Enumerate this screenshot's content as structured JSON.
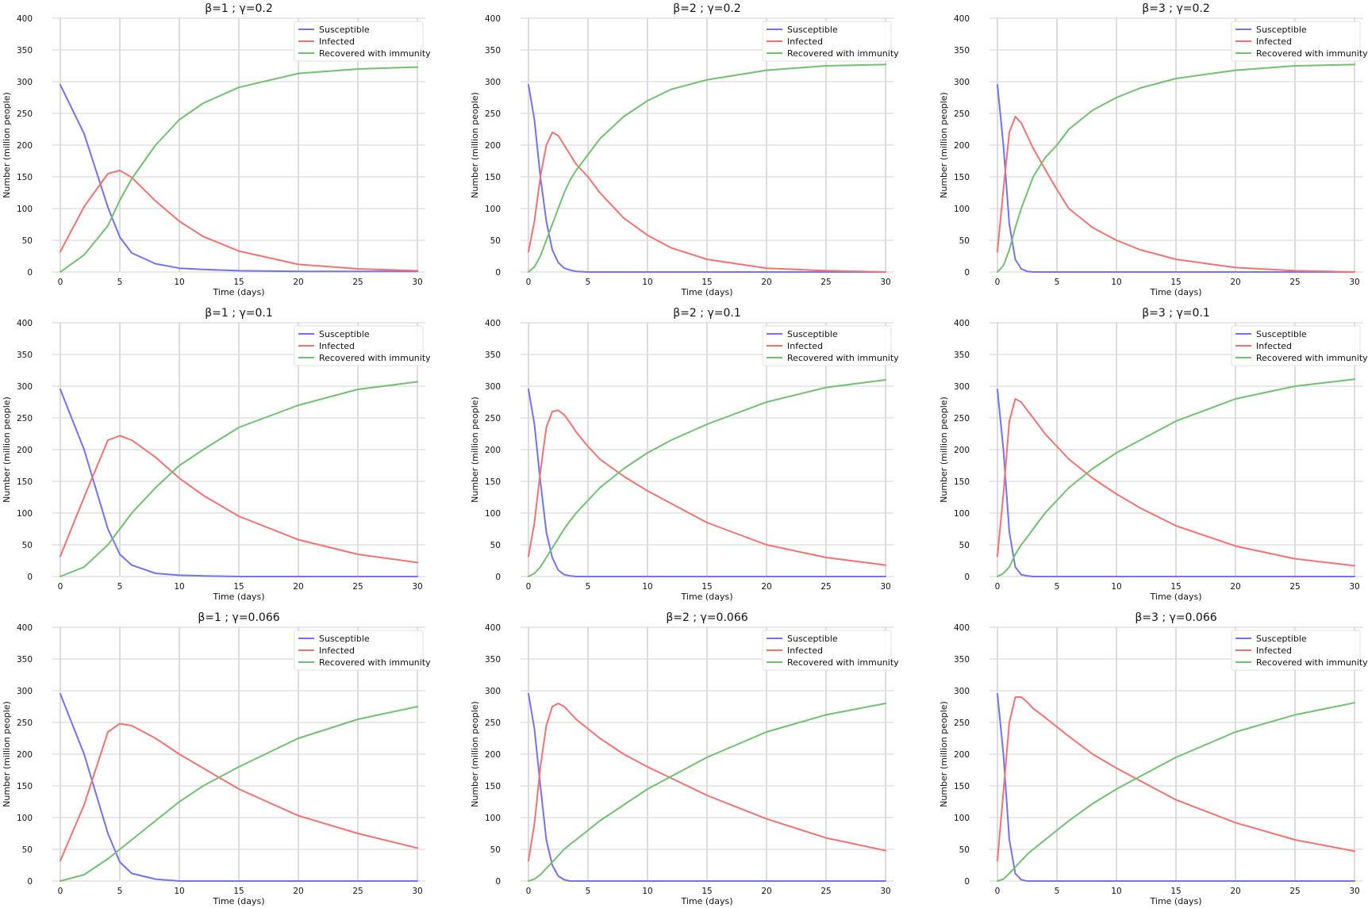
{
  "colors": {
    "susceptible": "#7272f2",
    "infected": "#f27272",
    "recovered": "#72bf72",
    "grid": "#d9d9d9",
    "background": "#ffffff"
  },
  "chart_data": [
    {
      "type": "line",
      "title": "β=1 ; γ=0.2",
      "xlabel": "Time (days)",
      "ylabel": "Number (million people)",
      "xlim": [
        0,
        30
      ],
      "ylim": [
        0,
        400
      ],
      "xticks": [
        0,
        5,
        10,
        15,
        20,
        25,
        30
      ],
      "yticks": [
        0,
        50,
        100,
        150,
        200,
        250,
        300,
        350,
        400
      ],
      "grid": true,
      "legend_position": "top-right",
      "x": [
        0,
        2,
        4,
        5,
        6,
        8,
        10,
        12,
        15,
        20,
        25,
        30
      ],
      "series": [
        {
          "name": "Susceptible",
          "color_key": "susceptible",
          "values": [
            295,
            218,
            102,
            55,
            30,
            13,
            6,
            4,
            2,
            1,
            1,
            1
          ]
        },
        {
          "name": "Infected",
          "color_key": "infected",
          "values": [
            32,
            103,
            155,
            160,
            149,
            112,
            80,
            56,
            33,
            12,
            5,
            2
          ]
        },
        {
          "name": "Recovered with immunity",
          "color_key": "recovered",
          "values": [
            0,
            27,
            73,
            113,
            147,
            200,
            240,
            266,
            291,
            313,
            320,
            323
          ]
        }
      ]
    },
    {
      "type": "line",
      "title": "β=2 ; γ=0.2",
      "xlabel": "Time (days)",
      "ylabel": "Number (million people)",
      "xlim": [
        0,
        30
      ],
      "ylim": [
        0,
        400
      ],
      "xticks": [
        0,
        5,
        10,
        15,
        20,
        25,
        30
      ],
      "yticks": [
        0,
        50,
        100,
        150,
        200,
        250,
        300,
        350,
        400
      ],
      "grid": true,
      "legend_position": "top-right",
      "x": [
        0,
        0.5,
        1,
        1.5,
        2,
        2.5,
        3,
        3.5,
        4,
        5,
        6,
        8,
        10,
        12,
        15,
        20,
        25,
        30
      ],
      "series": [
        {
          "name": "Susceptible",
          "color_key": "susceptible",
          "values": [
            295,
            240,
            150,
            80,
            35,
            15,
            6,
            3,
            1,
            0,
            0,
            0,
            0,
            0,
            0,
            0,
            0,
            0
          ]
        },
        {
          "name": "Infected",
          "color_key": "infected",
          "values": [
            32,
            80,
            150,
            200,
            220,
            215,
            200,
            185,
            170,
            150,
            125,
            85,
            58,
            38,
            20,
            6,
            2,
            0
          ]
        },
        {
          "name": "Recovered with immunity",
          "color_key": "recovered",
          "values": [
            0,
            8,
            25,
            50,
            75,
            100,
            125,
            145,
            160,
            185,
            210,
            245,
            270,
            288,
            303,
            318,
            325,
            327
          ]
        }
      ]
    },
    {
      "type": "line",
      "title": "β=3 ; γ=0.2",
      "xlabel": "Time (days)",
      "ylabel": "Number (million people)",
      "xlim": [
        0,
        30
      ],
      "ylim": [
        0,
        400
      ],
      "xticks": [
        0,
        5,
        10,
        15,
        20,
        25,
        30
      ],
      "yticks": [
        0,
        50,
        100,
        150,
        200,
        250,
        300,
        350,
        400
      ],
      "grid": true,
      "legend_position": "top-right",
      "x": [
        0,
        0.5,
        1,
        1.5,
        2,
        2.5,
        3,
        4,
        5,
        6,
        8,
        10,
        12,
        15,
        20,
        25,
        30
      ],
      "series": [
        {
          "name": "Susceptible",
          "color_key": "susceptible",
          "values": [
            295,
            200,
            75,
            20,
            5,
            1,
            0,
            0,
            0,
            0,
            0,
            0,
            0,
            0,
            0,
            0,
            0
          ]
        },
        {
          "name": "Infected",
          "color_key": "infected",
          "values": [
            32,
            130,
            220,
            245,
            235,
            215,
            195,
            162,
            130,
            100,
            70,
            50,
            35,
            20,
            7,
            2,
            0
          ]
        },
        {
          "name": "Recovered with immunity",
          "color_key": "recovered",
          "values": [
            0,
            10,
            35,
            70,
            100,
            125,
            150,
            180,
            200,
            225,
            255,
            275,
            290,
            305,
            318,
            325,
            327
          ]
        }
      ]
    },
    {
      "type": "line",
      "title": "β=1 ; γ=0.1",
      "xlabel": "Time (days)",
      "ylabel": "Number (million people)",
      "xlim": [
        0,
        30
      ],
      "ylim": [
        0,
        400
      ],
      "xticks": [
        0,
        5,
        10,
        15,
        20,
        25,
        30
      ],
      "yticks": [
        0,
        50,
        100,
        150,
        200,
        250,
        300,
        350,
        400
      ],
      "grid": true,
      "legend_position": "top-right",
      "x": [
        0,
        2,
        4,
        5,
        6,
        8,
        10,
        12,
        15,
        20,
        25,
        30
      ],
      "series": [
        {
          "name": "Susceptible",
          "color_key": "susceptible",
          "values": [
            295,
            200,
            75,
            35,
            18,
            5,
            2,
            1,
            0,
            0,
            0,
            0
          ]
        },
        {
          "name": "Infected",
          "color_key": "infected",
          "values": [
            32,
            125,
            215,
            222,
            215,
            188,
            155,
            128,
            95,
            58,
            35,
            22
          ]
        },
        {
          "name": "Recovered with immunity",
          "color_key": "recovered",
          "values": [
            0,
            15,
            50,
            75,
            100,
            140,
            175,
            200,
            235,
            270,
            295,
            307
          ]
        }
      ]
    },
    {
      "type": "line",
      "title": "β=2 ; γ=0.1",
      "xlabel": "Time (days)",
      "ylabel": "Number (million people)",
      "xlim": [
        0,
        30
      ],
      "ylim": [
        0,
        400
      ],
      "xticks": [
        0,
        5,
        10,
        15,
        20,
        25,
        30
      ],
      "yticks": [
        0,
        50,
        100,
        150,
        200,
        250,
        300,
        350,
        400
      ],
      "grid": true,
      "legend_position": "top-right",
      "x": [
        0,
        0.5,
        1,
        1.5,
        2,
        2.5,
        3,
        3.5,
        4,
        5,
        6,
        8,
        10,
        12,
        15,
        20,
        25,
        30
      ],
      "series": [
        {
          "name": "Susceptible",
          "color_key": "susceptible",
          "values": [
            295,
            240,
            150,
            70,
            30,
            10,
            3,
            1,
            0,
            0,
            0,
            0,
            0,
            0,
            0,
            0,
            0,
            0
          ]
        },
        {
          "name": "Infected",
          "color_key": "infected",
          "values": [
            32,
            85,
            165,
            235,
            260,
            262,
            255,
            242,
            228,
            205,
            185,
            158,
            135,
            115,
            85,
            50,
            30,
            18
          ]
        },
        {
          "name": "Recovered with immunity",
          "color_key": "recovered",
          "values": [
            0,
            5,
            15,
            30,
            45,
            60,
            75,
            88,
            100,
            120,
            140,
            170,
            195,
            215,
            240,
            275,
            298,
            310
          ]
        }
      ]
    },
    {
      "type": "line",
      "title": "β=3 ; γ=0.1",
      "xlabel": "Time (days)",
      "ylabel": "Number (million people)",
      "xlim": [
        0,
        30
      ],
      "ylim": [
        0,
        400
      ],
      "xticks": [
        0,
        5,
        10,
        15,
        20,
        25,
        30
      ],
      "yticks": [
        0,
        50,
        100,
        150,
        200,
        250,
        300,
        350,
        400
      ],
      "grid": true,
      "legend_position": "top-right",
      "x": [
        0,
        0.5,
        1,
        1.5,
        2,
        2.5,
        3,
        4,
        5,
        6,
        8,
        10,
        12,
        15,
        20,
        25,
        30
      ],
      "series": [
        {
          "name": "Susceptible",
          "color_key": "susceptible",
          "values": [
            295,
            200,
            70,
            15,
            3,
            1,
            0,
            0,
            0,
            0,
            0,
            0,
            0,
            0,
            0,
            0,
            0
          ]
        },
        {
          "name": "Infected",
          "color_key": "infected",
          "values": [
            32,
            130,
            245,
            280,
            275,
            262,
            250,
            225,
            205,
            185,
            155,
            130,
            108,
            80,
            48,
            28,
            17
          ]
        },
        {
          "name": "Recovered with immunity",
          "color_key": "recovered",
          "values": [
            0,
            5,
            15,
            35,
            50,
            62,
            75,
            100,
            120,
            140,
            170,
            195,
            215,
            245,
            280,
            300,
            311
          ]
        }
      ]
    },
    {
      "type": "line",
      "title": "β=1 ; γ=0.066",
      "xlabel": "Time (days)",
      "ylabel": "Number (million people)",
      "xlim": [
        0,
        30
      ],
      "ylim": [
        0,
        400
      ],
      "xticks": [
        0,
        5,
        10,
        15,
        20,
        25,
        30
      ],
      "yticks": [
        0,
        50,
        100,
        150,
        200,
        250,
        300,
        350,
        400
      ],
      "grid": true,
      "legend_position": "top-right",
      "x": [
        0,
        2,
        4,
        5,
        6,
        8,
        10,
        12,
        15,
        20,
        25,
        30
      ],
      "series": [
        {
          "name": "Susceptible",
          "color_key": "susceptible",
          "values": [
            295,
            200,
            75,
            30,
            12,
            3,
            0,
            0,
            0,
            0,
            0,
            0
          ]
        },
        {
          "name": "Infected",
          "color_key": "infected",
          "values": [
            32,
            120,
            235,
            248,
            245,
            225,
            200,
            178,
            145,
            103,
            75,
            52
          ]
        },
        {
          "name": "Recovered with immunity",
          "color_key": "recovered",
          "values": [
            0,
            10,
            35,
            50,
            65,
            95,
            125,
            150,
            180,
            225,
            255,
            275
          ]
        }
      ]
    },
    {
      "type": "line",
      "title": "β=2 ; γ=0.066",
      "xlabel": "Time (days)",
      "ylabel": "Number (million people)",
      "xlim": [
        0,
        30
      ],
      "ylim": [
        0,
        400
      ],
      "xticks": [
        0,
        5,
        10,
        15,
        20,
        25,
        30
      ],
      "yticks": [
        0,
        50,
        100,
        150,
        200,
        250,
        300,
        350,
        400
      ],
      "grid": true,
      "legend_position": "top-right",
      "x": [
        0,
        0.5,
        1,
        1.5,
        2,
        2.5,
        3,
        3.5,
        4,
        5,
        6,
        8,
        10,
        12,
        15,
        20,
        25,
        30
      ],
      "series": [
        {
          "name": "Susceptible",
          "color_key": "susceptible",
          "values": [
            295,
            240,
            150,
            65,
            25,
            8,
            2,
            0,
            0,
            0,
            0,
            0,
            0,
            0,
            0,
            0,
            0,
            0
          ]
        },
        {
          "name": "Infected",
          "color_key": "infected",
          "values": [
            32,
            90,
            180,
            245,
            275,
            280,
            275,
            265,
            255,
            240,
            225,
            200,
            180,
            162,
            135,
            98,
            68,
            48
          ]
        },
        {
          "name": "Recovered with immunity",
          "color_key": "recovered",
          "values": [
            0,
            3,
            10,
            20,
            30,
            40,
            50,
            58,
            65,
            80,
            95,
            120,
            145,
            165,
            195,
            235,
            262,
            280
          ]
        }
      ]
    },
    {
      "type": "line",
      "title": "β=3 ; γ=0.066",
      "xlabel": "Time (days)",
      "ylabel": "Number (million people)",
      "xlim": [
        0,
        30
      ],
      "ylim": [
        0,
        400
      ],
      "xticks": [
        0,
        5,
        10,
        15,
        20,
        25,
        30
      ],
      "yticks": [
        0,
        50,
        100,
        150,
        200,
        250,
        300,
        350,
        400
      ],
      "grid": true,
      "legend_position": "top-right",
      "x": [
        0,
        0.5,
        1,
        1.5,
        2,
        2.5,
        3,
        4,
        5,
        6,
        8,
        10,
        12,
        15,
        20,
        25,
        30
      ],
      "series": [
        {
          "name": "Susceptible",
          "color_key": "susceptible",
          "values": [
            295,
            200,
            65,
            12,
            2,
            0,
            0,
            0,
            0,
            0,
            0,
            0,
            0,
            0,
            0,
            0,
            0
          ]
        },
        {
          "name": "Infected",
          "color_key": "infected",
          "values": [
            32,
            140,
            250,
            290,
            290,
            282,
            272,
            258,
            243,
            228,
            200,
            178,
            158,
            128,
            92,
            65,
            47
          ]
        },
        {
          "name": "Recovered with immunity",
          "color_key": "recovered",
          "values": [
            0,
            3,
            12,
            22,
            32,
            42,
            50,
            65,
            80,
            95,
            122,
            145,
            165,
            195,
            235,
            262,
            281
          ]
        }
      ]
    }
  ]
}
